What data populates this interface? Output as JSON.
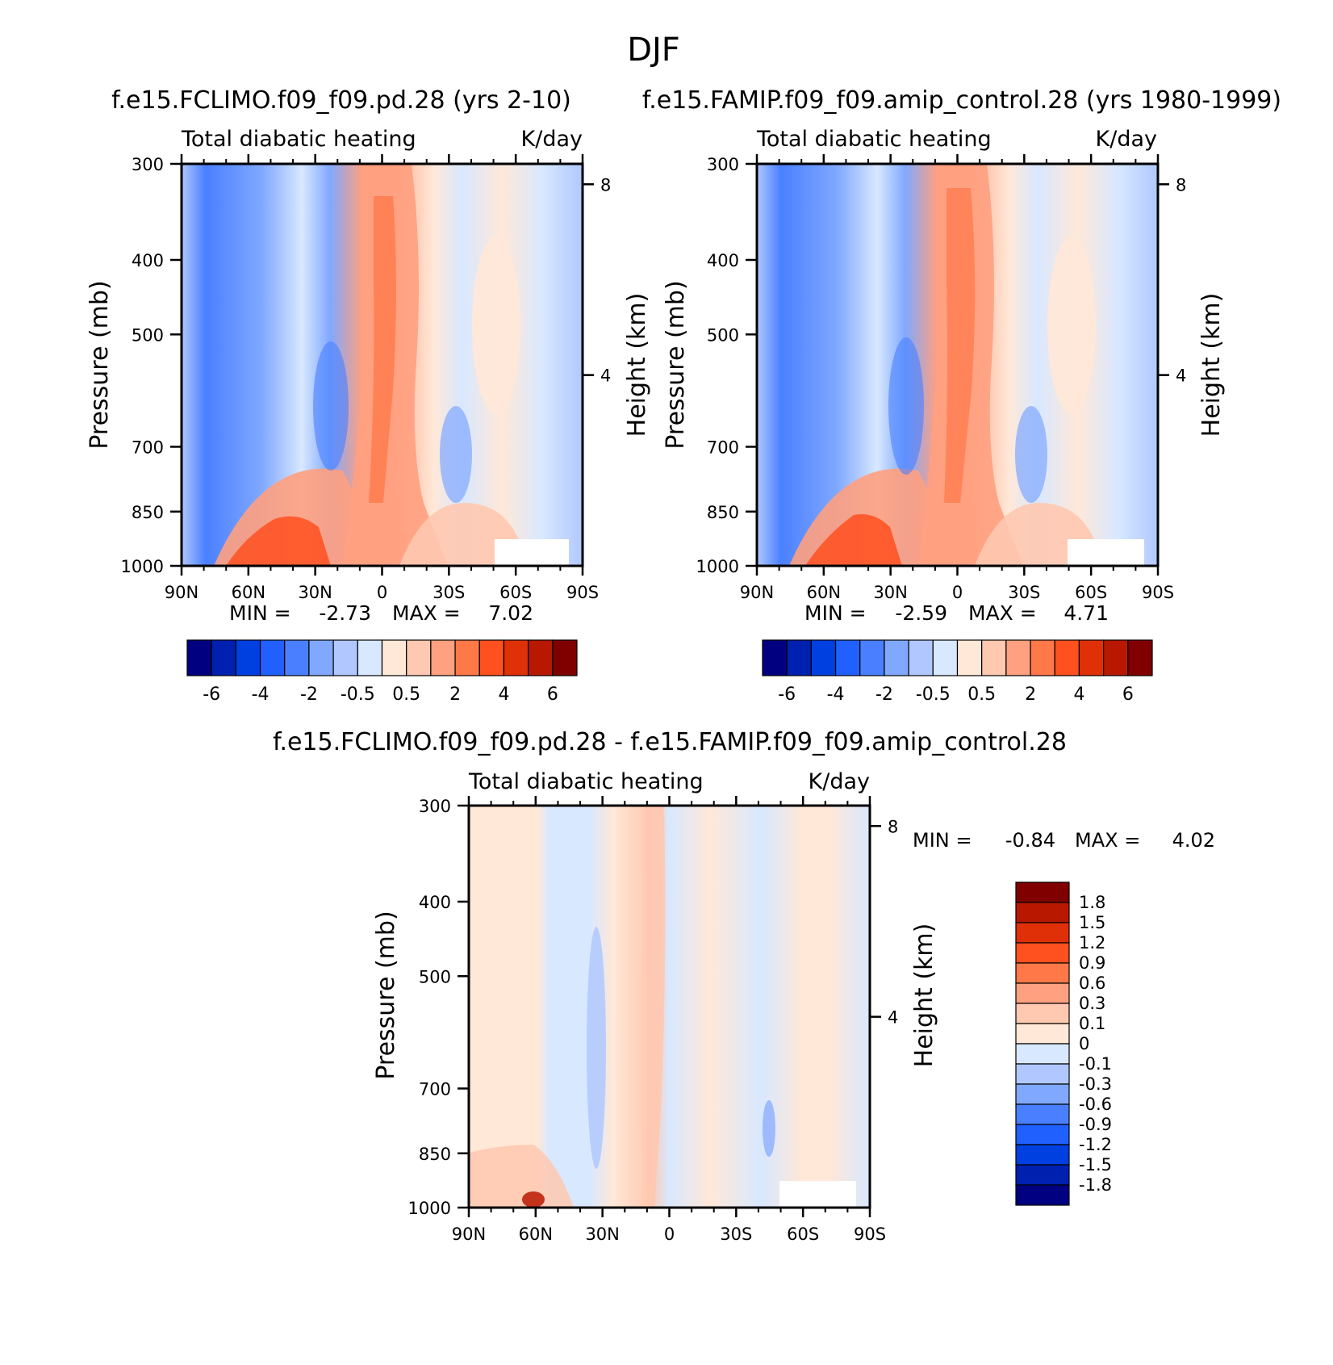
{
  "figure_title": "DJF",
  "chart_data": [
    {
      "type": "heatmap",
      "title": "f.e15.FCLIMO.f09_f09.pd.28 (yrs 2-10)",
      "left_string": "Total diabatic heating",
      "right_string": "K/day",
      "ylabel": "Pressure (mb)",
      "y2label": "Height (km)",
      "x_ticks": [
        "90N",
        "60N",
        "30N",
        "0",
        "30S",
        "60S",
        "90S"
      ],
      "x_range": [
        90,
        -90
      ],
      "y_ticks": [
        "300",
        "400",
        "500",
        "700",
        "850",
        "1000"
      ],
      "y_range": [
        300,
        1000
      ],
      "y2_ticks": [
        "8",
        "4"
      ],
      "min_label": "MIN =",
      "min_value": "-2.73",
      "max_label": "MAX =",
      "max_value": "7.02",
      "colorbar": {
        "orientation": "horizontal",
        "levels": [
          -6,
          -5,
          -4,
          -3,
          -2,
          -1,
          -0.5,
          0,
          0.5,
          1,
          2,
          3,
          4,
          5,
          6
        ],
        "labels": [
          "-6",
          "-4",
          "-2",
          "-0.5",
          "0.5",
          "2",
          "4",
          "6"
        ],
        "colors": [
          "#000080",
          "#0020b0",
          "#0040e0",
          "#2060ff",
          "#4a80ff",
          "#80a8ff",
          "#b0c8ff",
          "#d8e8ff",
          "#ffe8d8",
          "#ffc8b0",
          "#ffa080",
          "#ff7848",
          "#ff5020",
          "#e03008",
          "#b81800",
          "#800000"
        ]
      }
    },
    {
      "type": "heatmap",
      "title": "f.e15.FAMIP.f09_f09.amip_control.28 (yrs 1980-1999)",
      "left_string": "Total diabatic heating",
      "right_string": "K/day",
      "ylabel": "Pressure (mb)",
      "y2label": "Height (km)",
      "x_ticks": [
        "90N",
        "60N",
        "30N",
        "0",
        "30S",
        "60S",
        "90S"
      ],
      "x_range": [
        90,
        -90
      ],
      "y_ticks": [
        "300",
        "400",
        "500",
        "700",
        "850",
        "1000"
      ],
      "y_range": [
        300,
        1000
      ],
      "y2_ticks": [
        "8",
        "4"
      ],
      "min_label": "MIN =",
      "min_value": "-2.59",
      "max_label": "MAX =",
      "max_value": "4.71",
      "colorbar": {
        "orientation": "horizontal",
        "levels": [
          -6,
          -5,
          -4,
          -3,
          -2,
          -1,
          -0.5,
          0,
          0.5,
          1,
          2,
          3,
          4,
          5,
          6
        ],
        "labels": [
          "-6",
          "-4",
          "-2",
          "-0.5",
          "0.5",
          "2",
          "4",
          "6"
        ],
        "colors": [
          "#000080",
          "#0020b0",
          "#0040e0",
          "#2060ff",
          "#4a80ff",
          "#80a8ff",
          "#b0c8ff",
          "#d8e8ff",
          "#ffe8d8",
          "#ffc8b0",
          "#ffa080",
          "#ff7848",
          "#ff5020",
          "#e03008",
          "#b81800",
          "#800000"
        ]
      }
    },
    {
      "type": "heatmap",
      "title": "f.e15.FCLIMO.f09_f09.pd.28 - f.e15.FAMIP.f09_f09.amip_control.28",
      "left_string": "Total diabatic heating",
      "right_string": "K/day",
      "ylabel": "Pressure (mb)",
      "y2label": "Height (km)",
      "x_ticks": [
        "90N",
        "60N",
        "30N",
        "0",
        "30S",
        "60S",
        "90S"
      ],
      "x_range": [
        90,
        -90
      ],
      "y_ticks": [
        "300",
        "400",
        "500",
        "700",
        "850",
        "1000"
      ],
      "y_range": [
        300,
        1000
      ],
      "y2_ticks": [
        "8",
        "4"
      ],
      "min_label": "MIN =",
      "min_value": "-0.84",
      "max_label": "MAX =",
      "max_value": "4.02",
      "colorbar": {
        "orientation": "vertical",
        "levels": [
          -1.8,
          -1.5,
          -1.2,
          -0.9,
          -0.6,
          -0.3,
          -0.1,
          0,
          0.1,
          0.3,
          0.6,
          0.9,
          1.2,
          1.5,
          1.8
        ],
        "labels": [
          "1.8",
          "1.5",
          "1.2",
          "0.9",
          "0.6",
          "0.3",
          "0.1",
          "0",
          "-0.1",
          "-0.3",
          "-0.6",
          "-0.9",
          "-1.2",
          "-1.5",
          "-1.8"
        ],
        "colors": [
          "#800000",
          "#b81800",
          "#e03008",
          "#ff5020",
          "#ff7848",
          "#ffa080",
          "#ffc8b0",
          "#ffe8d8",
          "#d8e8ff",
          "#b0c8ff",
          "#80a8ff",
          "#4a80ff",
          "#2060ff",
          "#0040e0",
          "#0020b0",
          "#000080"
        ]
      }
    }
  ]
}
